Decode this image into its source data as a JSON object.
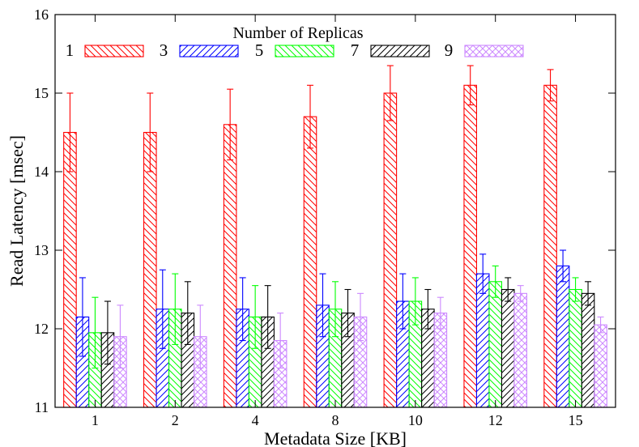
{
  "chart_data": {
    "type": "bar",
    "title": "",
    "xlabel": "Metadata Size [KB]",
    "ylabel": "Read Latency [msec]",
    "ylim": [
      11,
      16
    ],
    "yticks": [
      11,
      12,
      13,
      14,
      15,
      16
    ],
    "grid": false,
    "legend": {
      "title": "Number of Replicas",
      "placement": "top"
    },
    "categories": [
      "1",
      "2",
      "4",
      "8",
      "10",
      "12",
      "15"
    ],
    "series": [
      {
        "name": "1",
        "color": "#ff0000",
        "pattern": "hatch-back",
        "values": [
          14.5,
          14.5,
          14.6,
          14.7,
          15.0,
          15.1,
          15.1
        ],
        "err": [
          0.5,
          0.5,
          0.45,
          0.4,
          0.35,
          0.25,
          0.2
        ]
      },
      {
        "name": "3",
        "color": "#0000ff",
        "pattern": "hatch-fwd",
        "values": [
          12.15,
          12.25,
          12.25,
          12.3,
          12.35,
          12.7,
          12.8
        ],
        "err": [
          0.5,
          0.5,
          0.4,
          0.4,
          0.35,
          0.25,
          0.2
        ]
      },
      {
        "name": "5",
        "color": "#00ff00",
        "pattern": "hatch-back",
        "values": [
          11.95,
          12.25,
          12.15,
          12.25,
          12.35,
          12.6,
          12.5
        ],
        "err": [
          0.45,
          0.45,
          0.4,
          0.35,
          0.3,
          0.2,
          0.15
        ]
      },
      {
        "name": "7",
        "color": "#000000",
        "pattern": "hatch-fwd",
        "values": [
          11.95,
          12.2,
          12.15,
          12.2,
          12.25,
          12.5,
          12.45
        ],
        "err": [
          0.4,
          0.4,
          0.4,
          0.3,
          0.25,
          0.15,
          0.15
        ]
      },
      {
        "name": "9",
        "color": "#cc88ff",
        "pattern": "crosshatch",
        "values": [
          11.9,
          11.9,
          11.85,
          12.15,
          12.2,
          12.45,
          12.05
        ],
        "err": [
          0.4,
          0.4,
          0.35,
          0.3,
          0.2,
          0.1,
          0.1
        ]
      }
    ]
  }
}
